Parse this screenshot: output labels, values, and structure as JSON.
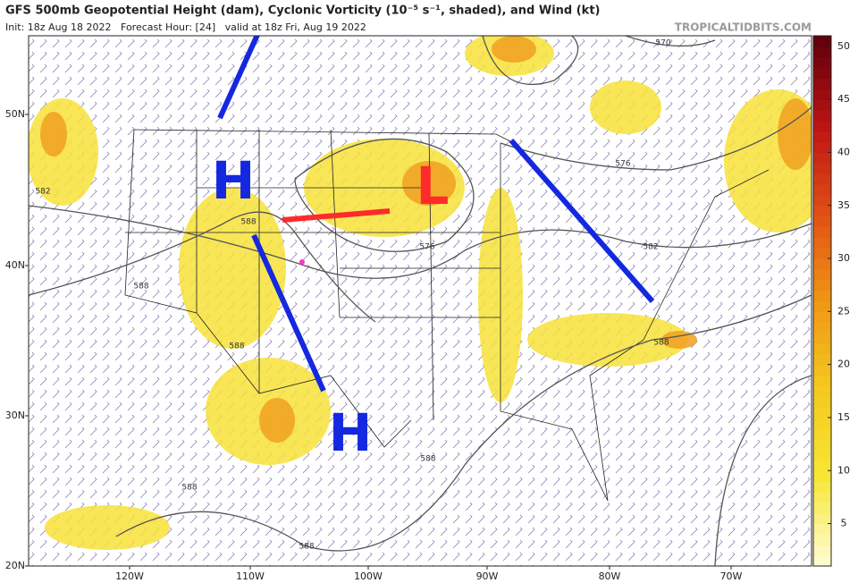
{
  "header": {
    "title": "GFS 500mb Geopotential Height (dam), Cyclonic Vorticity (10⁻⁵ s⁻¹, shaded), and Wind (kt)",
    "subtitle": "Init: 18z Aug 18 2022   Forecast Hour: [24]   valid at 18z Fri, Aug 19 2022",
    "watermark": "TROPICALTIDBITS.COM"
  },
  "map": {
    "lat_labels": [
      "50N",
      "40N",
      "30N",
      "20N"
    ],
    "lon_labels": [
      "120W",
      "110W",
      "100W",
      "90W",
      "80W",
      "70W"
    ],
    "contour_labels": [
      "582",
      "588",
      "588",
      "588",
      "588",
      "588",
      "588",
      "588",
      "582",
      "576",
      "576",
      "570"
    ],
    "annotations": [
      "H",
      "H",
      "L"
    ]
  },
  "colorbar": {
    "range": [
      1,
      51
    ],
    "ticks": [
      5,
      10,
      15,
      20,
      25,
      30,
      35,
      40,
      45,
      50
    ]
  }
}
